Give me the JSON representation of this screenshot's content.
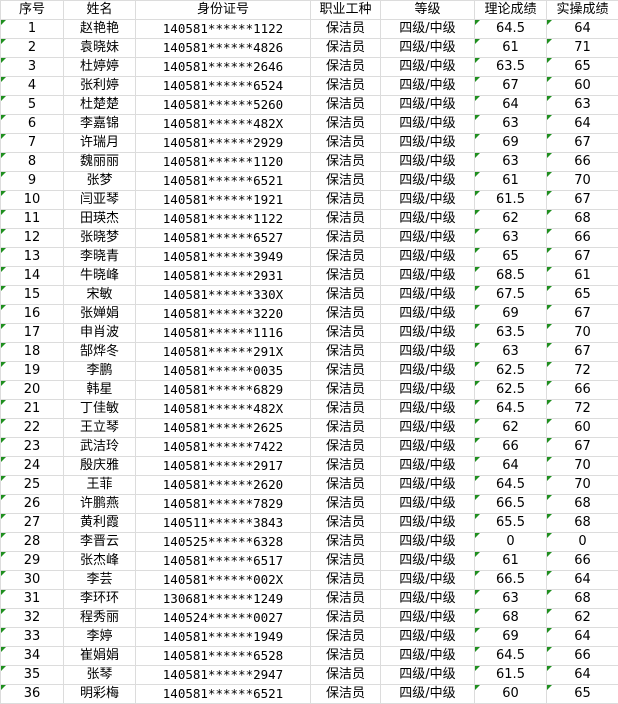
{
  "headers": [
    "序号",
    "姓名",
    "身份证号",
    "职业工种",
    "等级",
    "理论成绩",
    "实操成绩"
  ],
  "rows": [
    [
      "1",
      "赵艳艳",
      "140581******1122",
      "保洁员",
      "四级/中级",
      "64.5",
      "64"
    ],
    [
      "2",
      "袁晓妹",
      "140581******4826",
      "保洁员",
      "四级/中级",
      "61",
      "71"
    ],
    [
      "3",
      "杜婷婷",
      "140581******2646",
      "保洁员",
      "四级/中级",
      "63.5",
      "65"
    ],
    [
      "4",
      "张利婷",
      "140581******6524",
      "保洁员",
      "四级/中级",
      "67",
      "60"
    ],
    [
      "5",
      "杜楚楚",
      "140581******5260",
      "保洁员",
      "四级/中级",
      "64",
      "63"
    ],
    [
      "6",
      "李嘉锦",
      "140581******482X",
      "保洁员",
      "四级/中级",
      "63",
      "64"
    ],
    [
      "7",
      "许瑞月",
      "140581******2929",
      "保洁员",
      "四级/中级",
      "69",
      "67"
    ],
    [
      "8",
      "魏丽丽",
      "140581******1120",
      "保洁员",
      "四级/中级",
      "63",
      "66"
    ],
    [
      "9",
      "张梦",
      "140581******6521",
      "保洁员",
      "四级/中级",
      "61",
      "70"
    ],
    [
      "10",
      "闫亚琴",
      "140581******1921",
      "保洁员",
      "四级/中级",
      "61.5",
      "67"
    ],
    [
      "11",
      "田瑛杰",
      "140581******1122",
      "保洁员",
      "四级/中级",
      "62",
      "68"
    ],
    [
      "12",
      "张晓梦",
      "140581******6527",
      "保洁员",
      "四级/中级",
      "63",
      "66"
    ],
    [
      "13",
      "李晓青",
      "140581******3949",
      "保洁员",
      "四级/中级",
      "65",
      "67"
    ],
    [
      "14",
      "牛晓峰",
      "140581******2931",
      "保洁员",
      "四级/中级",
      "68.5",
      "61"
    ],
    [
      "15",
      "宋敏",
      "140581******330X",
      "保洁员",
      "四级/中级",
      "67.5",
      "65"
    ],
    [
      "16",
      "张婵娟",
      "140581******3220",
      "保洁员",
      "四级/中级",
      "69",
      "67"
    ],
    [
      "17",
      "申肖波",
      "140581******1116",
      "保洁员",
      "四级/中级",
      "63.5",
      "70"
    ],
    [
      "18",
      "郜烨冬",
      "140581******291X",
      "保洁员",
      "四级/中级",
      "63",
      "67"
    ],
    [
      "19",
      "李鹏",
      "140581******0035",
      "保洁员",
      "四级/中级",
      "62.5",
      "72"
    ],
    [
      "20",
      "韩星",
      "140581******6829",
      "保洁员",
      "四级/中级",
      "62.5",
      "66"
    ],
    [
      "21",
      "丁佳敏",
      "140581******482X",
      "保洁员",
      "四级/中级",
      "64.5",
      "72"
    ],
    [
      "22",
      "王立琴",
      "140581******2625",
      "保洁员",
      "四级/中级",
      "62",
      "60"
    ],
    [
      "23",
      "武洁玲",
      "140581******7422",
      "保洁员",
      "四级/中级",
      "66",
      "67"
    ],
    [
      "24",
      "殷庆雅",
      "140581******2917",
      "保洁员",
      "四级/中级",
      "64",
      "70"
    ],
    [
      "25",
      "王菲",
      "140581******2620",
      "保洁员",
      "四级/中级",
      "64.5",
      "70"
    ],
    [
      "26",
      "许鹏燕",
      "140581******7829",
      "保洁员",
      "四级/中级",
      "66.5",
      "68"
    ],
    [
      "27",
      "黄利霞",
      "140511******3843",
      "保洁员",
      "四级/中级",
      "65.5",
      "68"
    ],
    [
      "28",
      "李晋云",
      "140525******6328",
      "保洁员",
      "四级/中级",
      "0",
      "0"
    ],
    [
      "29",
      "张杰峰",
      "140581******6517",
      "保洁员",
      "四级/中级",
      "61",
      "66"
    ],
    [
      "30",
      "李芸",
      "140581******002X",
      "保洁员",
      "四级/中级",
      "66.5",
      "64"
    ],
    [
      "31",
      "李环环",
      "130681******1249",
      "保洁员",
      "四级/中级",
      "63",
      "68"
    ],
    [
      "32",
      "程秀丽",
      "140524******0027",
      "保洁员",
      "四级/中级",
      "68",
      "62"
    ],
    [
      "33",
      "李婷",
      "140581******1949",
      "保洁员",
      "四级/中级",
      "69",
      "64"
    ],
    [
      "34",
      "崔娟娟",
      "140581******6528",
      "保洁员",
      "四级/中级",
      "64.5",
      "66"
    ],
    [
      "35",
      "张琴",
      "140581******2947",
      "保洁员",
      "四级/中级",
      "61.5",
      "64"
    ],
    [
      "36",
      "明彩梅",
      "140581******6521",
      "保洁员",
      "四级/中级",
      "60",
      "65"
    ]
  ],
  "colors": {
    "grid": "#dcdcdc",
    "triangle": "#1f8f1f"
  }
}
